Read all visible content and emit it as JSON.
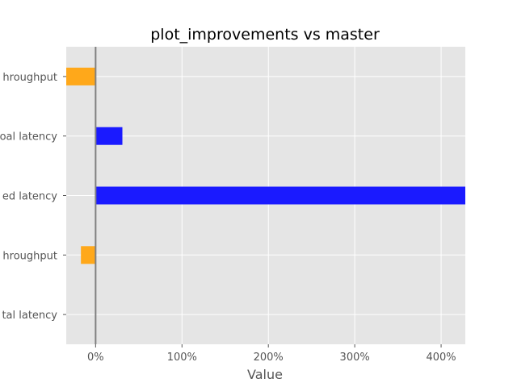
{
  "chart_data": {
    "type": "bar",
    "orientation": "horizontal",
    "title": "plot_improvements vs master",
    "xlabel": "Value",
    "ylabel": "",
    "categories": [
      "hroughput",
      "oal latency",
      "ed latency",
      "hroughput",
      "tal latency"
    ],
    "values": [
      -34,
      31,
      428,
      -17,
      0
    ],
    "bar_colors": [
      "#ffa81a",
      "#1a1aff",
      "#1a1aff",
      "#ffa81a",
      "#1a1aff"
    ],
    "xlim": [
      -34,
      428
    ],
    "xticks": [
      0,
      100,
      200,
      300,
      400
    ],
    "xtick_labels": [
      "0%",
      "100%",
      "200%",
      "300%",
      "400%"
    ],
    "grid": true,
    "background": "#e5e5e5",
    "zero_line_color": "#808080"
  }
}
